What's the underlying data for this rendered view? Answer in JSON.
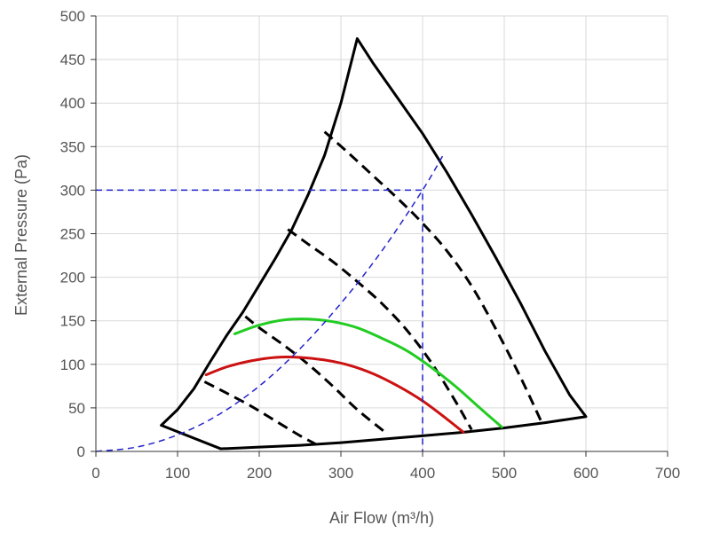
{
  "chart_data": {
    "type": "line",
    "xlabel": "Air Flow (m³/h)",
    "ylabel": "External Pressure (Pa)",
    "xlim": [
      0,
      700
    ],
    "ylim": [
      0,
      500
    ],
    "x_ticks": [
      0,
      100,
      200,
      300,
      400,
      500,
      600,
      700
    ],
    "y_ticks": [
      0,
      50,
      100,
      150,
      200,
      250,
      300,
      350,
      400,
      450,
      500
    ],
    "grid": true,
    "legend": "none",
    "series": [
      {
        "style": "envelope",
        "color": "#000000",
        "x": [
          320,
          340,
          370,
          400,
          430,
          460,
          490,
          520,
          550,
          580,
          600,
          550,
          500,
          450,
          400,
          350,
          300,
          250,
          200,
          153,
          80,
          100,
          120,
          140,
          160,
          180,
          200,
          220,
          240,
          260,
          280,
          300,
          320
        ],
        "y": [
          474,
          445,
          405,
          365,
          320,
          272,
          222,
          170,
          115,
          65,
          40,
          33,
          27,
          22,
          18,
          14,
          10,
          7,
          5,
          3,
          30,
          48,
          72,
          103,
          133,
          160,
          191,
          222,
          255,
          295,
          340,
          400,
          474
        ]
      },
      {
        "style": "dashed",
        "color": "#000000",
        "x": [
          280,
          310,
          340,
          370,
          400,
          430,
          460,
          490,
          520,
          545
        ],
        "y": [
          367,
          342,
          316,
          290,
          262,
          230,
          190,
          140,
          85,
          35
        ]
      },
      {
        "style": "dashed",
        "color": "#000000",
        "x": [
          235,
          260,
          290,
          320,
          350,
          380,
          410,
          440,
          460
        ],
        "y": [
          255,
          238,
          218,
          195,
          170,
          140,
          103,
          58,
          25
        ]
      },
      {
        "style": "dashed",
        "color": "#000000",
        "x": [
          183,
          200,
          230,
          260,
          290,
          320,
          357
        ],
        "y": [
          155,
          142,
          122,
          100,
          75,
          48,
          20
        ]
      },
      {
        "style": "dashed",
        "color": "#000000",
        "x": [
          133,
          160,
          190,
          220,
          250,
          270
        ],
        "y": [
          80,
          67,
          52,
          35,
          18,
          8
        ]
      },
      {
        "style": "solid",
        "color": "#22cc22",
        "x": [
          170,
          200,
          230,
          260,
          290,
          320,
          350,
          380,
          410,
          440,
          470,
          497
        ],
        "y": [
          135,
          145,
          151,
          152,
          149,
          142,
          130,
          116,
          97,
          75,
          50,
          28
        ]
      },
      {
        "style": "solid",
        "color": "#cc1111",
        "x": [
          135,
          160,
          190,
          220,
          250,
          280,
          310,
          340,
          370,
          400,
          430,
          450
        ],
        "y": [
          88,
          97,
          104,
          108,
          108,
          105,
          99,
          89,
          75,
          58,
          37,
          22
        ]
      },
      {
        "style": "dashed-thin",
        "color": "#2222cc",
        "x": [
          0,
          50,
          100,
          150,
          200,
          250,
          300,
          350,
          400,
          425
        ],
        "y": [
          0,
          5,
          19,
          42,
          75,
          118,
          170,
          230,
          300,
          340
        ]
      },
      {
        "style": "dashed-thin",
        "color": "#2222cc",
        "x": [
          0,
          400,
          400
        ],
        "y": [
          300,
          300,
          0
        ]
      }
    ]
  }
}
